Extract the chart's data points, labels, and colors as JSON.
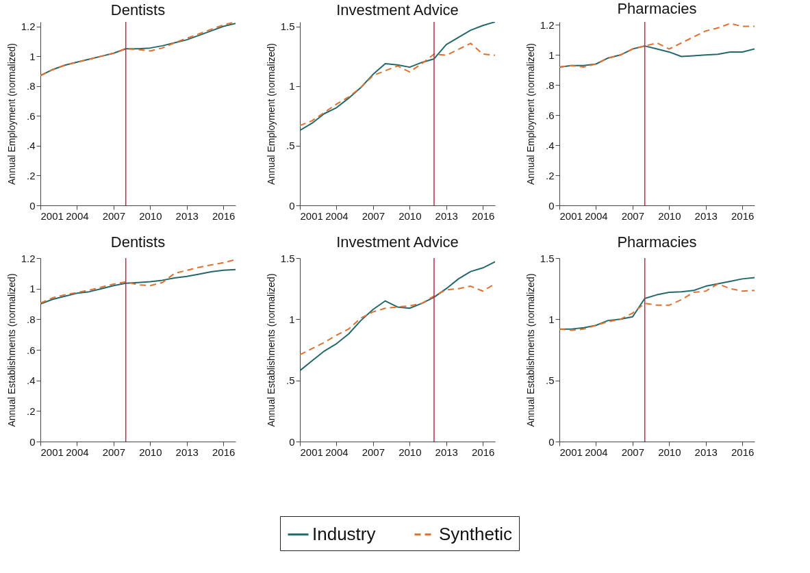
{
  "chart_data": [
    {
      "type": "line",
      "title": "Dentists",
      "ylabel": "Annual Employment (normalized)",
      "x": [
        2001,
        2002,
        2003,
        2004,
        2005,
        2006,
        2007,
        2008,
        2009,
        2010,
        2011,
        2012,
        2013,
        2014,
        2015,
        2016,
        2017
      ],
      "xlim": [
        2001,
        2017
      ],
      "xticks": [
        2001,
        2004,
        2007,
        2010,
        2013,
        2016
      ],
      "ylim": [
        0,
        1.23
      ],
      "yticks": [
        0,
        {
          "value": 0.2,
          "label": ".2"
        },
        {
          "value": 0.4,
          "label": ".4"
        },
        {
          "value": 0.6,
          "label": ".6"
        },
        {
          "value": 0.8,
          "label": ".8"
        },
        1,
        1.2
      ],
      "legend": "bottom",
      "ref_lines": [
        {
          "axis": "x",
          "value": 2008,
          "color": "#c8234a"
        }
      ],
      "series": [
        {
          "name": "Industry",
          "color": "#22676a",
          "line_style": "solid",
          "values": [
            0.87,
            0.91,
            0.94,
            0.96,
            0.98,
            1.0,
            1.02,
            1.05,
            1.05,
            1.055,
            1.07,
            1.09,
            1.11,
            1.14,
            1.17,
            1.2,
            1.22
          ]
        },
        {
          "name": "Synthetic",
          "color": "#e0702f",
          "line_style": "dashed",
          "values": [
            0.87,
            0.91,
            0.94,
            0.96,
            0.98,
            1.0,
            1.02,
            1.05,
            1.045,
            1.035,
            1.055,
            1.09,
            1.12,
            1.15,
            1.18,
            1.21,
            1.23
          ]
        }
      ]
    },
    {
      "type": "line",
      "title": "Investment Advice",
      "ylabel": "Annual Employment (normalized)",
      "x": [
        2001,
        2002,
        2003,
        2004,
        2005,
        2006,
        2007,
        2008,
        2009,
        2010,
        2011,
        2012,
        2013,
        2014,
        2015,
        2016,
        2017
      ],
      "xlim": [
        2001,
        2017
      ],
      "xticks": [
        2001,
        2004,
        2007,
        2010,
        2013,
        2016
      ],
      "ylim": [
        0,
        1.54
      ],
      "yticks": [
        0,
        {
          "value": 0.5,
          "label": ".5"
        },
        1,
        1.5
      ],
      "legend": "bottom",
      "ref_lines": [
        {
          "axis": "x",
          "value": 2012,
          "color": "#c8234a"
        }
      ],
      "series": [
        {
          "name": "Industry",
          "color": "#22676a",
          "line_style": "solid",
          "values": [
            0.63,
            0.69,
            0.77,
            0.82,
            0.9,
            0.99,
            1.1,
            1.19,
            1.18,
            1.16,
            1.2,
            1.23,
            1.35,
            1.41,
            1.47,
            1.51,
            1.54
          ]
        },
        {
          "name": "Synthetic",
          "color": "#e0702f",
          "line_style": "dashed",
          "values": [
            0.67,
            0.71,
            0.78,
            0.85,
            0.91,
            0.99,
            1.09,
            1.13,
            1.17,
            1.12,
            1.19,
            1.27,
            1.26,
            1.31,
            1.36,
            1.27,
            1.26
          ]
        }
      ]
    },
    {
      "type": "line",
      "title": "Pharmacies",
      "ylabel": "Annual Employment (normalized)",
      "x": [
        2001,
        2002,
        2003,
        2004,
        2005,
        2006,
        2007,
        2008,
        2009,
        2010,
        2011,
        2012,
        2013,
        2014,
        2015,
        2016,
        2017
      ],
      "xlim": [
        2001,
        2017
      ],
      "xticks": [
        2001,
        2004,
        2007,
        2010,
        2013,
        2016
      ],
      "ylim": [
        0,
        1.22
      ],
      "yticks": [
        0,
        {
          "value": 0.2,
          "label": ".2"
        },
        {
          "value": 0.4,
          "label": ".4"
        },
        {
          "value": 0.6,
          "label": ".6"
        },
        {
          "value": 0.8,
          "label": ".8"
        },
        1,
        1.2
      ],
      "legend": "bottom",
      "ref_lines": [
        {
          "axis": "x",
          "value": 2008,
          "color": "#c8234a"
        }
      ],
      "series": [
        {
          "name": "Industry",
          "color": "#22676a",
          "line_style": "solid",
          "values": [
            0.92,
            0.93,
            0.93,
            0.94,
            0.98,
            1.0,
            1.04,
            1.06,
            1.04,
            1.02,
            0.99,
            0.995,
            1.0,
            1.005,
            1.02,
            1.02,
            1.04
          ]
        },
        {
          "name": "Synthetic",
          "color": "#e0702f",
          "line_style": "dashed",
          "values": [
            0.92,
            0.93,
            0.92,
            0.94,
            0.98,
            1.0,
            1.04,
            1.06,
            1.08,
            1.04,
            1.08,
            1.12,
            1.16,
            1.18,
            1.21,
            1.19,
            1.19
          ]
        }
      ]
    },
    {
      "type": "line",
      "title": "Dentists",
      "ylabel": "Annual Establishments (normalized)",
      "x": [
        2001,
        2002,
        2003,
        2004,
        2005,
        2006,
        2007,
        2008,
        2009,
        2010,
        2011,
        2012,
        2013,
        2014,
        2015,
        2016,
        2017
      ],
      "xlim": [
        2001,
        2017
      ],
      "xticks": [
        2001,
        2004,
        2007,
        2010,
        2013,
        2016
      ],
      "ylim": [
        0,
        1.2
      ],
      "yticks": [
        0,
        {
          "value": 0.2,
          "label": ".2"
        },
        {
          "value": 0.4,
          "label": ".4"
        },
        {
          "value": 0.6,
          "label": ".6"
        },
        {
          "value": 0.8,
          "label": ".8"
        },
        1,
        1.2
      ],
      "legend": "bottom",
      "ref_lines": [
        {
          "axis": "x",
          "value": 2008,
          "color": "#c8234a"
        }
      ],
      "series": [
        {
          "name": "Industry",
          "color": "#22676a",
          "line_style": "solid",
          "values": [
            0.9,
            0.93,
            0.95,
            0.97,
            0.98,
            1.0,
            1.02,
            1.035,
            1.04,
            1.045,
            1.055,
            1.07,
            1.08,
            1.095,
            1.11,
            1.12,
            1.125
          ]
        },
        {
          "name": "Synthetic",
          "color": "#e0702f",
          "line_style": "dashed",
          "values": [
            0.905,
            0.94,
            0.96,
            0.975,
            0.99,
            1.01,
            1.03,
            1.045,
            1.025,
            1.02,
            1.04,
            1.1,
            1.12,
            1.14,
            1.155,
            1.17,
            1.19
          ]
        }
      ]
    },
    {
      "type": "line",
      "title": "Investment Advice",
      "ylabel": "Annual Establishments (normalized)",
      "x": [
        2001,
        2002,
        2003,
        2004,
        2005,
        2006,
        2007,
        2008,
        2009,
        2010,
        2011,
        2012,
        2013,
        2014,
        2015,
        2016,
        2017
      ],
      "xlim": [
        2001,
        2017
      ],
      "xticks": [
        2001,
        2004,
        2007,
        2010,
        2013,
        2016
      ],
      "ylim": [
        0,
        1.5
      ],
      "yticks": [
        0,
        {
          "value": 0.5,
          "label": ".5"
        },
        1,
        1.5
      ],
      "legend": "bottom",
      "ref_lines": [
        {
          "axis": "x",
          "value": 2012,
          "color": "#c8234a"
        }
      ],
      "series": [
        {
          "name": "Industry",
          "color": "#22676a",
          "line_style": "solid",
          "values": [
            0.58,
            0.66,
            0.74,
            0.8,
            0.88,
            0.99,
            1.08,
            1.15,
            1.1,
            1.09,
            1.13,
            1.18,
            1.25,
            1.33,
            1.39,
            1.42,
            1.47
          ]
        },
        {
          "name": "Synthetic",
          "color": "#e0702f",
          "line_style": "dashed",
          "values": [
            0.71,
            0.76,
            0.81,
            0.87,
            0.92,
            1.01,
            1.06,
            1.09,
            1.1,
            1.11,
            1.13,
            1.19,
            1.24,
            1.25,
            1.27,
            1.23,
            1.29
          ]
        }
      ]
    },
    {
      "type": "line",
      "title": "Pharmacies",
      "ylabel": "Annual Establishments (normalized)",
      "x": [
        2001,
        2002,
        2003,
        2004,
        2005,
        2006,
        2007,
        2008,
        2009,
        2010,
        2011,
        2012,
        2013,
        2014,
        2015,
        2016,
        2017
      ],
      "xlim": [
        2001,
        2017
      ],
      "xticks": [
        2001,
        2004,
        2007,
        2010,
        2013,
        2016
      ],
      "ylim": [
        0,
        1.5
      ],
      "yticks": [
        0,
        {
          "value": 0.5,
          "label": ".5"
        },
        1,
        1.5
      ],
      "legend": "bottom",
      "ref_lines": [
        {
          "axis": "x",
          "value": 2008,
          "color": "#c8234a"
        }
      ],
      "series": [
        {
          "name": "Industry",
          "color": "#22676a",
          "line_style": "solid",
          "values": [
            0.92,
            0.92,
            0.93,
            0.95,
            0.99,
            1.0,
            1.02,
            1.17,
            1.2,
            1.22,
            1.225,
            1.235,
            1.27,
            1.29,
            1.31,
            1.33,
            1.34
          ]
        },
        {
          "name": "Synthetic",
          "color": "#e0702f",
          "line_style": "dashed",
          "values": [
            0.92,
            0.91,
            0.92,
            0.95,
            0.98,
            1.0,
            1.05,
            1.13,
            1.115,
            1.115,
            1.16,
            1.22,
            1.23,
            1.29,
            1.25,
            1.23,
            1.235
          ]
        }
      ]
    }
  ]
}
